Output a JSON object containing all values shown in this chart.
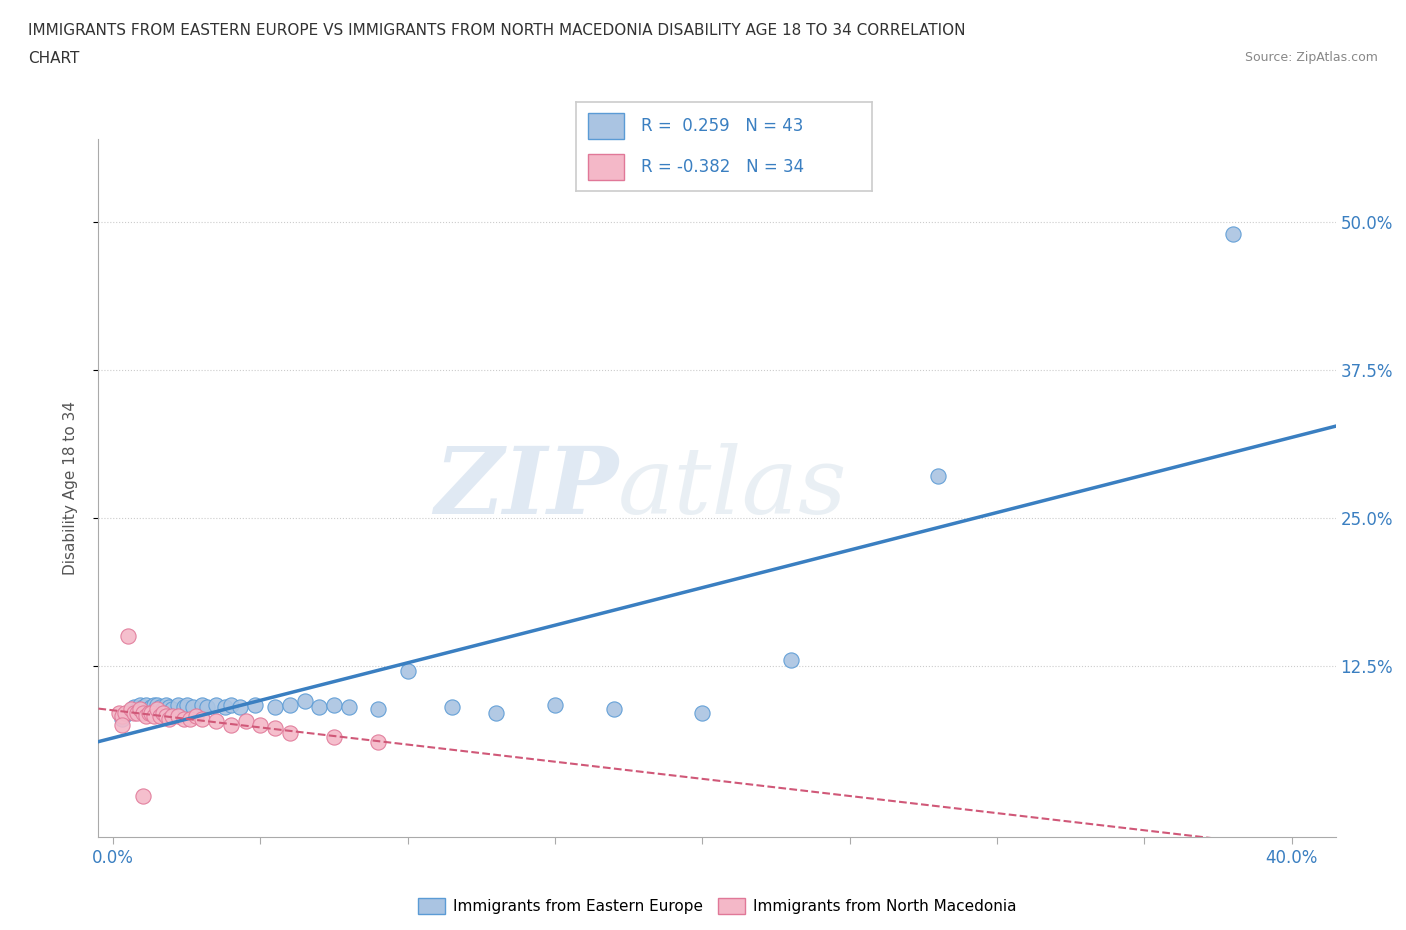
{
  "title_line1": "IMMIGRANTS FROM EASTERN EUROPE VS IMMIGRANTS FROM NORTH MACEDONIA DISABILITY AGE 18 TO 34 CORRELATION",
  "title_line2": "CHART",
  "source_text": "Source: ZipAtlas.com",
  "ylabel_text": "Disability Age 18 to 34",
  "y_tick_labels": [
    "12.5%",
    "25.0%",
    "37.5%",
    "50.0%"
  ],
  "y_ticks": [
    0.125,
    0.25,
    0.375,
    0.5
  ],
  "xlim": [
    -0.005,
    0.415
  ],
  "ylim": [
    -0.02,
    0.57
  ],
  "R_blue": 0.259,
  "N_blue": 43,
  "R_pink": -0.382,
  "N_pink": 34,
  "blue_color": "#aac4e2",
  "blue_edge_color": "#5b9bd5",
  "blue_line_color": "#3a7fc1",
  "pink_color": "#f4b8c8",
  "pink_edge_color": "#e07898",
  "pink_line_color": "#d05878",
  "legend_label_blue": "Immigrants from Eastern Europe",
  "legend_label_pink": "Immigrants from North Macedonia",
  "watermark_zip": "ZIP",
  "watermark_atlas": "atlas",
  "blue_scatter_x": [
    0.003,
    0.005,
    0.007,
    0.008,
    0.009,
    0.01,
    0.011,
    0.012,
    0.013,
    0.014,
    0.015,
    0.016,
    0.017,
    0.018,
    0.019,
    0.02,
    0.022,
    0.024,
    0.025,
    0.027,
    0.03,
    0.032,
    0.035,
    0.038,
    0.04,
    0.043,
    0.048,
    0.055,
    0.06,
    0.065,
    0.07,
    0.075,
    0.08,
    0.09,
    0.1,
    0.115,
    0.13,
    0.15,
    0.17,
    0.2,
    0.23,
    0.28,
    0.38
  ],
  "blue_scatter_y": [
    0.08,
    0.085,
    0.09,
    0.088,
    0.092,
    0.09,
    0.092,
    0.088,
    0.09,
    0.092,
    0.092,
    0.09,
    0.088,
    0.092,
    0.09,
    0.088,
    0.092,
    0.09,
    0.092,
    0.09,
    0.092,
    0.09,
    0.092,
    0.09,
    0.092,
    0.09,
    0.092,
    0.09,
    0.092,
    0.095,
    0.09,
    0.092,
    0.09,
    0.088,
    0.12,
    0.09,
    0.085,
    0.092,
    0.088,
    0.085,
    0.13,
    0.285,
    0.49
  ],
  "pink_scatter_x": [
    0.002,
    0.003,
    0.004,
    0.005,
    0.006,
    0.007,
    0.008,
    0.009,
    0.01,
    0.011,
    0.012,
    0.013,
    0.014,
    0.015,
    0.016,
    0.017,
    0.018,
    0.019,
    0.02,
    0.022,
    0.024,
    0.026,
    0.028,
    0.03,
    0.035,
    0.04,
    0.045,
    0.05,
    0.055,
    0.06,
    0.075,
    0.09,
    0.01,
    0.003
  ],
  "pink_scatter_y": [
    0.085,
    0.082,
    0.085,
    0.15,
    0.088,
    0.085,
    0.085,
    0.088,
    0.085,
    0.082,
    0.085,
    0.085,
    0.082,
    0.088,
    0.082,
    0.085,
    0.082,
    0.08,
    0.082,
    0.082,
    0.08,
    0.08,
    0.082,
    0.08,
    0.078,
    0.075,
    0.078,
    0.075,
    0.072,
    0.068,
    0.065,
    0.06,
    0.015,
    0.075
  ]
}
